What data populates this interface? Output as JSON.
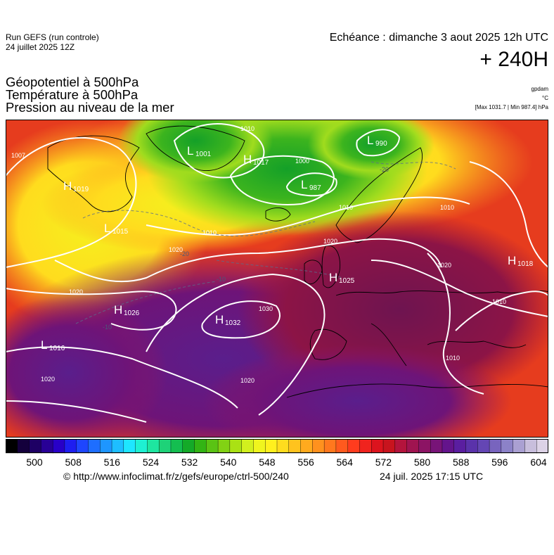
{
  "header": {
    "run_line1": "Run GEFS (run controle)",
    "run_line2": "24 juillet 2025 12Z",
    "echeance": "Echéance : dimanche 3 aout 2025 12h UTC",
    "hours": "+ 240H",
    "title1": "Géopotentiel à 500hPa",
    "title2": "Température à 500hPa",
    "title3": "Pression au niveau de la mer",
    "unit1": "gpdam",
    "unit2": "°C",
    "unit3": "[Max 1031.7 | Min 987.4] hPa"
  },
  "pressure_centers": [
    {
      "type": "H",
      "value": "1019"
    },
    {
      "type": "L",
      "value": "1001"
    },
    {
      "type": "H",
      "value": "1017"
    },
    {
      "type": "L",
      "value": "990"
    },
    {
      "type": "L",
      "value": "987"
    },
    {
      "type": "L",
      "value": "1015"
    },
    {
      "type": "H",
      "value": "1026"
    },
    {
      "type": "H",
      "value": "1032"
    },
    {
      "type": "H",
      "value": "1025"
    },
    {
      "type": "H",
      "value": "1018"
    },
    {
      "type": "L",
      "value": "1016"
    }
  ],
  "isobar_labels": [
    "1007",
    "1010",
    "1000",
    "1010",
    "1010",
    "1020",
    "1020",
    "1010",
    "1020",
    "1030",
    "1010",
    "1010",
    "1020",
    "1020",
    "1020"
  ],
  "temp_labels": [
    "-20",
    "-20",
    "-10",
    "-10"
  ],
  "colorbar": {
    "ticks": [
      "500",
      "508",
      "516",
      "524",
      "532",
      "540",
      "548",
      "556",
      "564",
      "572",
      "580",
      "588",
      "596",
      "604"
    ],
    "colors": [
      "#000000",
      "#14003c",
      "#1e0064",
      "#280096",
      "#2800c8",
      "#1e1ef0",
      "#1e46ff",
      "#1e6eff",
      "#1e96ff",
      "#1ebeff",
      "#1ee6ff",
      "#1ef0d2",
      "#1ee6a0",
      "#1ed278",
      "#14be50",
      "#14aa28",
      "#32b414",
      "#5ac314",
      "#82d214",
      "#aae114",
      "#d2f01e",
      "#f0f51e",
      "#fff01e",
      "#ffdc1e",
      "#ffc31e",
      "#ffaa1e",
      "#ff911e",
      "#ff781e",
      "#ff5a1e",
      "#ff3c1e",
      "#f0231e",
      "#dc141e",
      "#c8141e",
      "#b4143c",
      "#a01450",
      "#8c1464",
      "#781478",
      "#64148c",
      "#5a1ea0",
      "#5a32aa",
      "#6446b4",
      "#7864be",
      "#8c82c8",
      "#aaa0d2",
      "#c8bedc",
      "#dcd2e6"
    ]
  },
  "footer": {
    "url": "© http://www.infoclimat.fr/z/gefs/europe/ctrl-500/240",
    "date": "24 juil. 2025 17:15 UTC"
  }
}
